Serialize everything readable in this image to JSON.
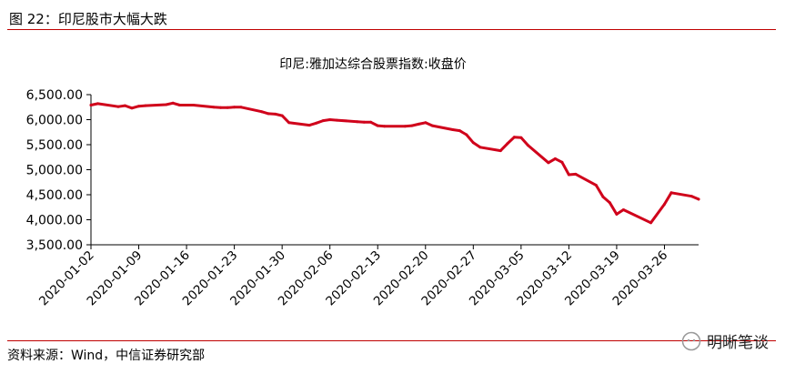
{
  "figure_title": "图 22：印尼股市大幅大跌",
  "source": "资料来源：Wind，中信证券研究部",
  "watermark": "明晰笔谈",
  "colors": {
    "line": "#d0021b",
    "rule": "#c00000",
    "axis": "#000000"
  },
  "chart_data": {
    "type": "line",
    "title": "印尼:雅加达综合股票指数:收盘价",
    "xlabel": "",
    "ylabel": "",
    "ylim": [
      3500,
      6500
    ],
    "yticks": [
      "6,500.00",
      "6,000.00",
      "5,500.00",
      "5,000.00",
      "4,500.00",
      "4,000.00",
      "3,500.00"
    ],
    "ytick_values": [
      6500,
      6000,
      5500,
      5000,
      4500,
      4000,
      3500
    ],
    "xticks": [
      "2020-01-02",
      "2020-01-09",
      "2020-01-16",
      "2020-01-23",
      "2020-01-30",
      "2020-02-06",
      "2020-02-13",
      "2020-02-20",
      "2020-02-27",
      "2020-03-05",
      "2020-03-12",
      "2020-03-19",
      "2020-03-26"
    ],
    "grid": false,
    "legend": "none",
    "series": [
      {
        "x": [
          "2020-01-02",
          "2020-01-03",
          "2020-01-06",
          "2020-01-07",
          "2020-01-08",
          "2020-01-09",
          "2020-01-10",
          "2020-01-13",
          "2020-01-14",
          "2020-01-15",
          "2020-01-16",
          "2020-01-17",
          "2020-01-20",
          "2020-01-21",
          "2020-01-22",
          "2020-01-23",
          "2020-01-24",
          "2020-01-27",
          "2020-01-28",
          "2020-01-29",
          "2020-01-30",
          "2020-01-31",
          "2020-02-03",
          "2020-02-04",
          "2020-02-05",
          "2020-02-06",
          "2020-02-07",
          "2020-02-10",
          "2020-02-11",
          "2020-02-12",
          "2020-02-13",
          "2020-02-14",
          "2020-02-17",
          "2020-02-18",
          "2020-02-19",
          "2020-02-20",
          "2020-02-21",
          "2020-02-24",
          "2020-02-25",
          "2020-02-26",
          "2020-02-27",
          "2020-02-28",
          "2020-03-02",
          "2020-03-03",
          "2020-03-04",
          "2020-03-05",
          "2020-03-06",
          "2020-03-09",
          "2020-03-10",
          "2020-03-11",
          "2020-03-12",
          "2020-03-13",
          "2020-03-16",
          "2020-03-17",
          "2020-03-18",
          "2020-03-19",
          "2020-03-20",
          "2020-03-24",
          "2020-03-26",
          "2020-03-27",
          "2020-03-30",
          "2020-03-31"
        ],
        "values": [
          6290,
          6320,
          6260,
          6280,
          6230,
          6270,
          6280,
          6300,
          6330,
          6290,
          6290,
          6290,
          6250,
          6240,
          6240,
          6250,
          6250,
          6160,
          6120,
          6110,
          6080,
          5940,
          5890,
          5930,
          5980,
          6000,
          5990,
          5960,
          5950,
          5950,
          5880,
          5870,
          5870,
          5880,
          5910,
          5940,
          5880,
          5800,
          5780,
          5700,
          5540,
          5450,
          5380,
          5520,
          5650,
          5640,
          5490,
          5140,
          5220,
          5150,
          4900,
          4910,
          4690,
          4460,
          4340,
          4110,
          4200,
          3940,
          4310,
          4540,
          4470,
          4410
        ]
      }
    ]
  }
}
